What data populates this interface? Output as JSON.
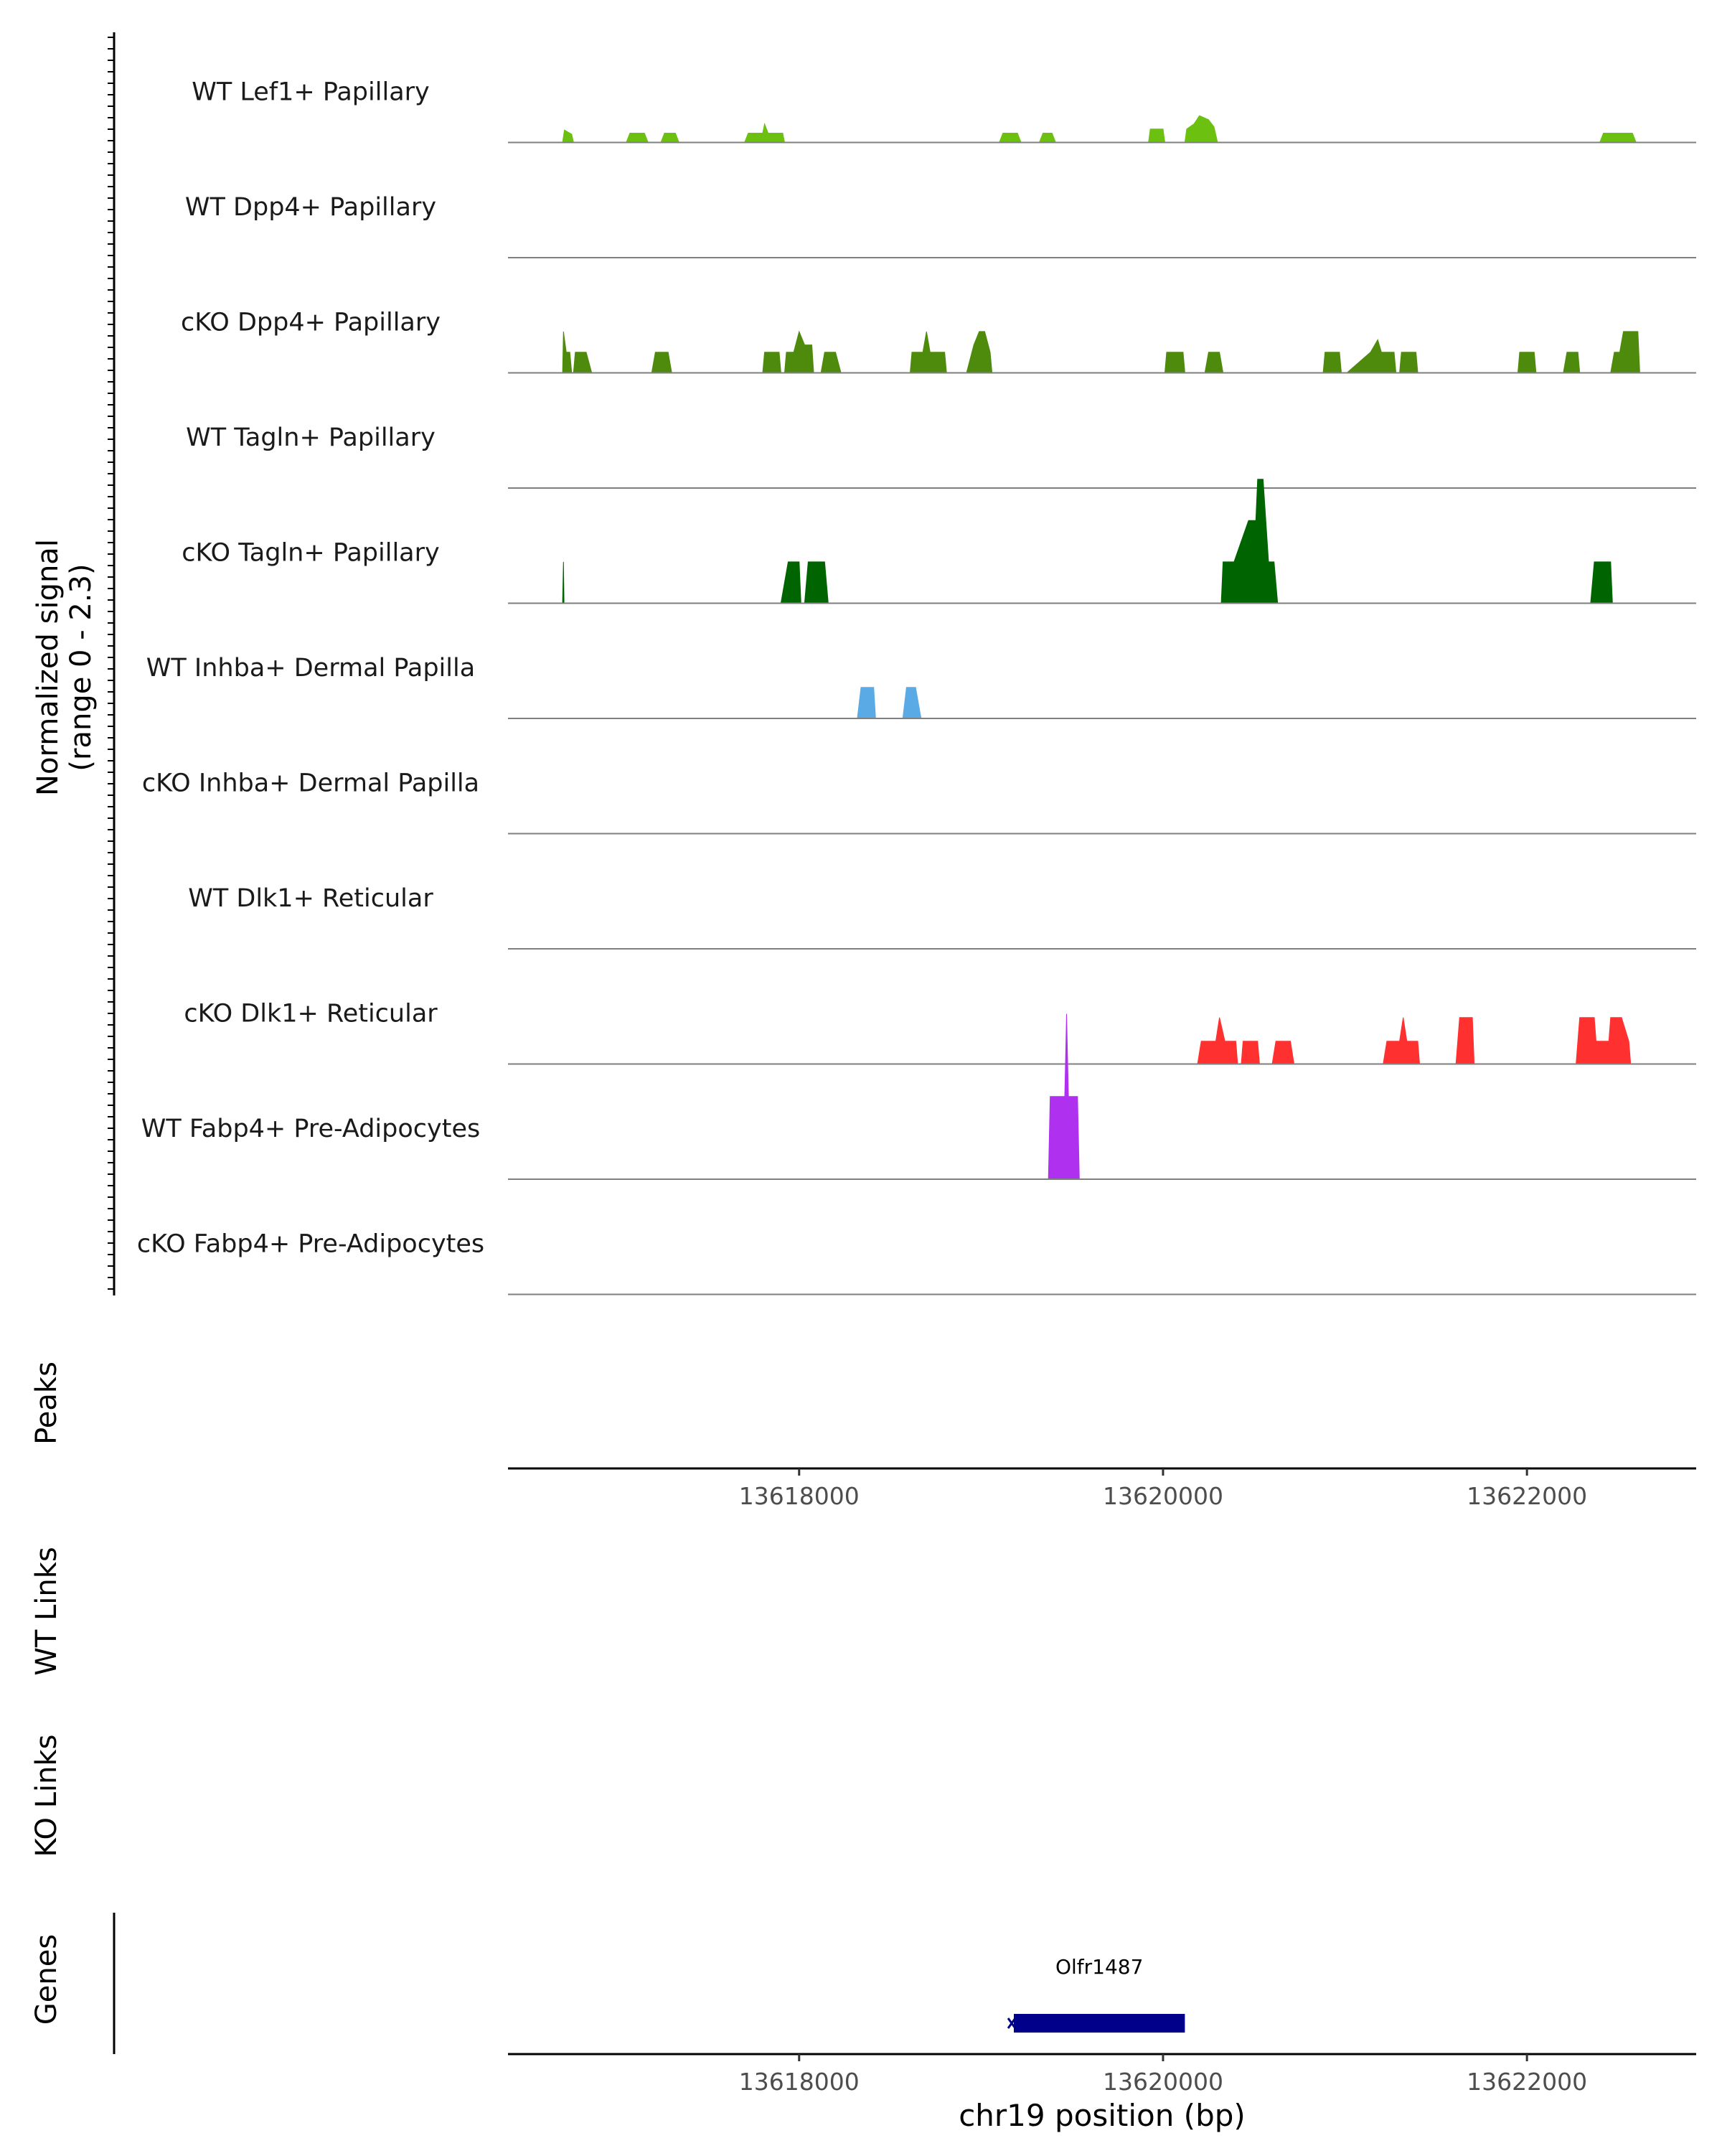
{
  "chart_data": {
    "type": "area",
    "title": "",
    "chromosome": "chr19",
    "xlabel": "chr19 position (bp)",
    "xlim": [
      13616400,
      13622930
    ],
    "ylim": [
      0,
      2.3
    ],
    "ylabel_line1": "Normalized signal",
    "ylabel_line2": "(range 0 - 2.3)",
    "ticks": [
      13618000,
      13620000,
      13622000
    ],
    "tick_labels": [
      "13618000",
      "13620000",
      "13622000"
    ],
    "track_labels": {
      "peaks": "Peaks",
      "wt_links": "WT Links",
      "ko_links": "KO Links",
      "genes": "Genes"
    },
    "series": [
      {
        "name": "WT Lef1+ Papillary",
        "color": "#6cc110",
        "segments": [
          [
            [
              13616700,
              0
            ],
            [
              13616710,
              0.12
            ],
            [
              13616750,
              0.08
            ],
            [
              13616760,
              0
            ]
          ],
          [
            [
              13617050,
              0
            ],
            [
              13617070,
              0.09
            ],
            [
              13617150,
              0.09
            ],
            [
              13617170,
              0
            ]
          ],
          [
            [
              13617240,
              0
            ],
            [
              13617260,
              0.09
            ],
            [
              13617320,
              0.09
            ],
            [
              13617340,
              0
            ]
          ],
          [
            [
              13617700,
              0
            ],
            [
              13617720,
              0.09
            ],
            [
              13617800,
              0.09
            ],
            [
              13617810,
              0.18
            ],
            [
              13617830,
              0.09
            ],
            [
              13617910,
              0.09
            ],
            [
              13617920,
              0
            ]
          ],
          [
            [
              13619100,
              0
            ],
            [
              13619120,
              0.09
            ],
            [
              13619200,
              0.09
            ],
            [
              13619220,
              0
            ]
          ],
          [
            [
              13619320,
              0
            ],
            [
              13619340,
              0.09
            ],
            [
              13619390,
              0.09
            ],
            [
              13619410,
              0
            ]
          ],
          [
            [
              13619920,
              0
            ],
            [
              13619930,
              0.13
            ],
            [
              13620000,
              0.13
            ],
            [
              13620010,
              0
            ]
          ],
          [
            [
              13620120,
              0
            ],
            [
              13620130,
              0.13
            ],
            [
              13620170,
              0.18
            ],
            [
              13620200,
              0.26
            ],
            [
              13620250,
              0.22
            ],
            [
              13620280,
              0.15
            ],
            [
              13620300,
              0
            ]
          ],
          [
            [
              13622400,
              0
            ],
            [
              13622420,
              0.09
            ],
            [
              13622580,
              0.09
            ],
            [
              13622600,
              0
            ]
          ]
        ]
      },
      {
        "name": "WT Dpp4+ Papillary",
        "color": "#4e8b0c",
        "segments": []
      },
      {
        "name": "cKO Dpp4+ Papillary",
        "color": "#4e8b0c",
        "segments": [
          [
            [
              13616700,
              0
            ],
            [
              13616705,
              0.4
            ],
            [
              13616720,
              0.2
            ],
            [
              13616740,
              0.2
            ],
            [
              13616750,
              0
            ]
          ],
          [
            [
              13616760,
              0
            ],
            [
              13616770,
              0.2
            ],
            [
              13616830,
              0.2
            ],
            [
              13616860,
              0
            ]
          ],
          [
            [
              13617190,
              0
            ],
            [
              13617210,
              0.2
            ],
            [
              13617280,
              0.2
            ],
            [
              13617300,
              0
            ]
          ],
          [
            [
              13617800,
              0
            ],
            [
              13617810,
              0.2
            ],
            [
              13617890,
              0.2
            ],
            [
              13617900,
              0
            ]
          ],
          [
            [
              13617920,
              0
            ],
            [
              13617930,
              0.2
            ],
            [
              13617970,
              0.2
            ],
            [
              13618000,
              0.4
            ],
            [
              13618030,
              0.27
            ],
            [
              13618070,
              0.27
            ],
            [
              13618080,
              0
            ]
          ],
          [
            [
              13618120,
              0
            ],
            [
              13618140,
              0.2
            ],
            [
              13618200,
              0.2
            ],
            [
              13618230,
              0
            ]
          ],
          [
            [
              13618610,
              0
            ],
            [
              13618620,
              0.2
            ],
            [
              13618680,
              0.2
            ],
            [
              13618700,
              0.4
            ],
            [
              13618720,
              0.2
            ],
            [
              13618800,
              0.2
            ],
            [
              13618810,
              0
            ]
          ],
          [
            [
              13618920,
              0
            ],
            [
              13618960,
              0.27
            ],
            [
              13618990,
              0.4
            ],
            [
              13619020,
              0.4
            ],
            [
              13619050,
              0.2
            ],
            [
              13619060,
              0
            ]
          ],
          [
            [
              13620010,
              0
            ],
            [
              13620020,
              0.2
            ],
            [
              13620110,
              0.2
            ],
            [
              13620120,
              0
            ]
          ],
          [
            [
              13620230,
              0
            ],
            [
              13620250,
              0.2
            ],
            [
              13620310,
              0.2
            ],
            [
              13620330,
              0
            ]
          ],
          [
            [
              13620880,
              0
            ],
            [
              13620890,
              0.2
            ],
            [
              13620970,
              0.2
            ],
            [
              13620980,
              0
            ]
          ],
          [
            [
              13621010,
              0
            ],
            [
              13621140,
              0.2
            ],
            [
              13621180,
              0.32
            ],
            [
              13621200,
              0.2
            ],
            [
              13621270,
              0.2
            ],
            [
              13621280,
              0
            ]
          ],
          [
            [
              13621300,
              0
            ],
            [
              13621310,
              0.2
            ],
            [
              13621390,
              0.2
            ],
            [
              13621400,
              0
            ]
          ],
          [
            [
              13621950,
              0
            ],
            [
              13621960,
              0.2
            ],
            [
              13622040,
              0.2
            ],
            [
              13622050,
              0
            ]
          ],
          [
            [
              13622200,
              0
            ],
            [
              13622220,
              0.2
            ],
            [
              13622280,
              0.2
            ],
            [
              13622290,
              0
            ]
          ],
          [
            [
              13622460,
              0
            ],
            [
              13622480,
              0.2
            ],
            [
              13622510,
              0.2
            ],
            [
              13622530,
              0.4
            ],
            [
              13622610,
              0.4
            ],
            [
              13622620,
              0
            ]
          ]
        ]
      },
      {
        "name": "WT Tagln+ Papillary",
        "color": "#006400",
        "segments": []
      },
      {
        "name": "cKO Tagln+ Papillary",
        "color": "#006400",
        "segments": [
          [
            [
              13616700,
              0
            ],
            [
              13616705,
              0.4
            ],
            [
              13616708,
              0
            ]
          ],
          [
            [
              13617900,
              0
            ],
            [
              13617940,
              0.4
            ],
            [
              13618000,
              0.4
            ],
            [
              13618010,
              0
            ]
          ],
          [
            [
              13618030,
              0
            ],
            [
              13618050,
              0.4
            ],
            [
              13618140,
              0.4
            ],
            [
              13618160,
              0
            ]
          ],
          [
            [
              13620320,
              0
            ],
            [
              13620330,
              0.4
            ],
            [
              13620390,
              0.4
            ],
            [
              13620470,
              0.8
            ],
            [
              13620510,
              0.8
            ],
            [
              13620520,
              1.2
            ],
            [
              13620550,
              1.2
            ],
            [
              13620580,
              0.4
            ],
            [
              13620610,
              0.4
            ],
            [
              13620630,
              0
            ]
          ],
          [
            [
              13622350,
              0
            ],
            [
              13622370,
              0.4
            ],
            [
              13622460,
              0.4
            ],
            [
              13622470,
              0
            ]
          ]
        ]
      },
      {
        "name": "WT Inhba+ Dermal Papilla",
        "color": "#5aaae6",
        "segments": [
          [
            [
              13618320,
              0
            ],
            [
              13618340,
              0.3
            ],
            [
              13618410,
              0.3
            ],
            [
              13618420,
              0
            ]
          ],
          [
            [
              13618570,
              0
            ],
            [
              13618590,
              0.3
            ],
            [
              13618640,
              0.3
            ],
            [
              13618670,
              0
            ]
          ]
        ]
      },
      {
        "name": "cKO Inhba+ Dermal Papilla",
        "color": "#5aaae6",
        "segments": []
      },
      {
        "name": "WT Dlk1+ Reticular",
        "color": "#ff3030",
        "segments": []
      },
      {
        "name": "cKO Dlk1+ Reticular",
        "color": "#ff3030",
        "segments": [
          [
            [
              13620190,
              0
            ],
            [
              13620210,
              0.22
            ],
            [
              13620290,
              0.22
            ],
            [
              13620310,
              0.45
            ],
            [
              13620340,
              0.22
            ],
            [
              13620400,
              0.22
            ],
            [
              13620410,
              0
            ]
          ],
          [
            [
              13620430,
              0
            ],
            [
              13620440,
              0.22
            ],
            [
              13620520,
              0.22
            ],
            [
              13620530,
              0
            ]
          ],
          [
            [
              13620600,
              0
            ],
            [
              13620620,
              0.22
            ],
            [
              13620700,
              0.22
            ],
            [
              13620720,
              0
            ]
          ],
          [
            [
              13621210,
              0
            ],
            [
              13621230,
              0.22
            ],
            [
              13621300,
              0.22
            ],
            [
              13621320,
              0.45
            ],
            [
              13621340,
              0.22
            ],
            [
              13621400,
              0.22
            ],
            [
              13621410,
              0
            ]
          ],
          [
            [
              13621610,
              0
            ],
            [
              13621630,
              0.45
            ],
            [
              13621700,
              0.45
            ],
            [
              13621710,
              0
            ]
          ],
          [
            [
              13622270,
              0
            ],
            [
              13622290,
              0.45
            ],
            [
              13622370,
              0.45
            ],
            [
              13622380,
              0.22
            ],
            [
              13622450,
              0.22
            ],
            [
              13622460,
              0.45
            ],
            [
              13622520,
              0.45
            ],
            [
              13622560,
              0.22
            ],
            [
              13622570,
              0
            ]
          ]
        ]
      },
      {
        "name": "WT Fabp4+ Pre-Adipocytes",
        "color": "#b030f0",
        "segments": [
          [
            [
              13619370,
              0
            ],
            [
              13619380,
              0.8
            ],
            [
              13619460,
              0.8
            ],
            [
              13619470,
              1.6
            ],
            [
              13619480,
              0.8
            ],
            [
              13619530,
              0.8
            ],
            [
              13619540,
              0
            ]
          ]
        ]
      },
      {
        "name": "cKO Fabp4+ Pre-Adipocytes",
        "color": "#b030f0",
        "segments": []
      }
    ],
    "genes": [
      {
        "name": "Olfr1487",
        "start": 13619180,
        "end": 13620120,
        "strand": "-",
        "color": "#00008b"
      }
    ]
  }
}
